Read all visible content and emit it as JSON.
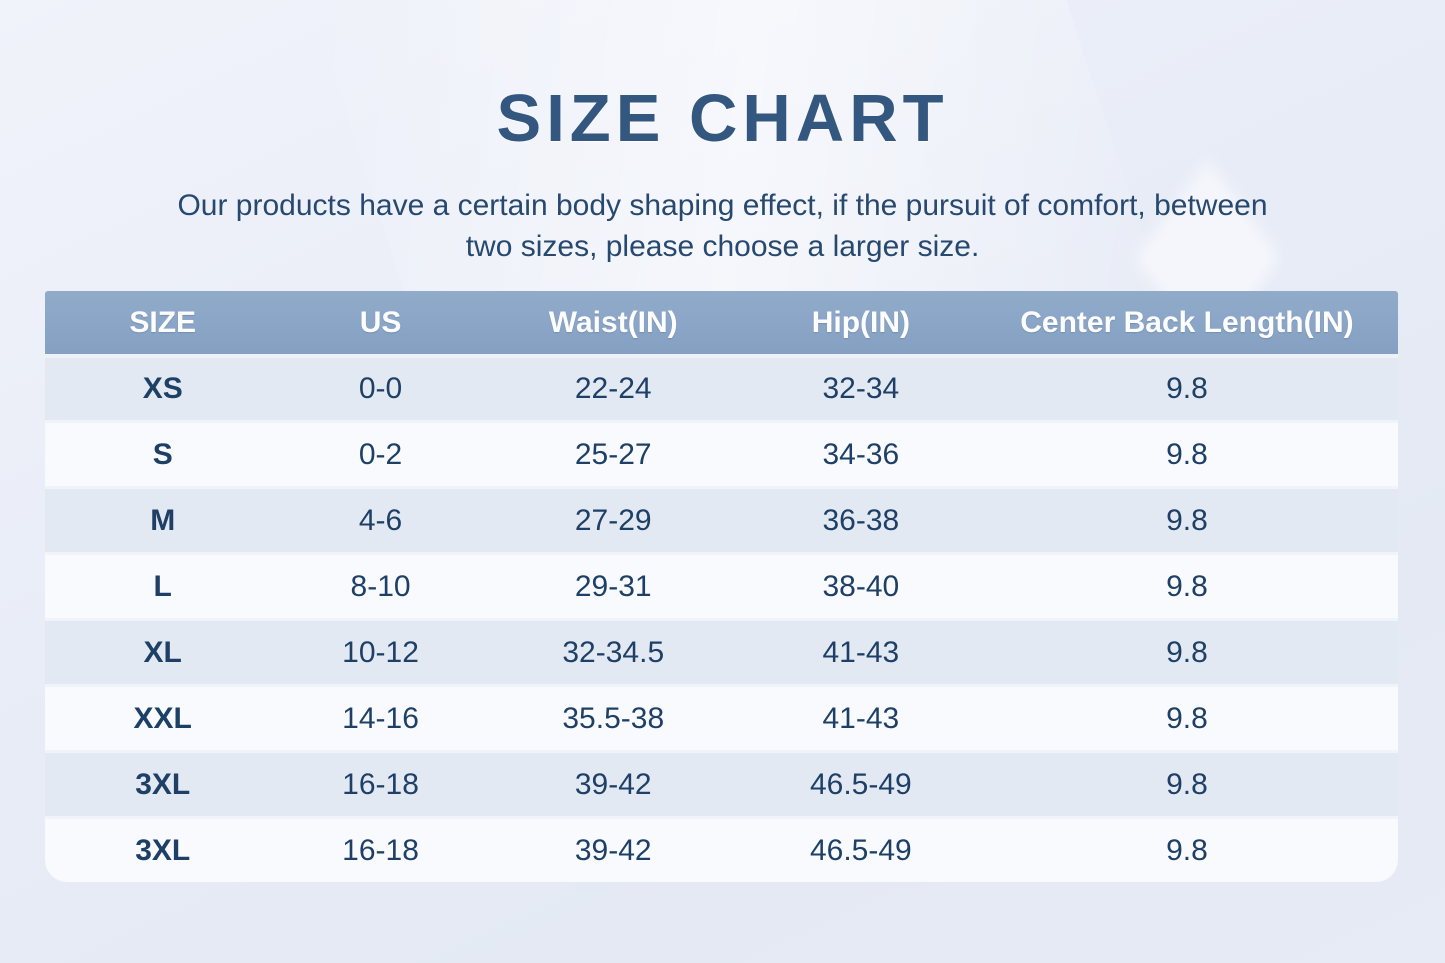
{
  "chart_data": {
    "type": "table",
    "title": "SIZE CHART",
    "subtitle_lines": [
      "Our products have a certain body shaping effect, if the pursuit of comfort, between",
      "two sizes, please choose a larger size."
    ],
    "subtitle_full": "Our products have a certain body shaping effect, if the pursuit of comfort, between two sizes, please choose a larger size.",
    "columns": [
      "SIZE",
      "US",
      "Waist(IN)",
      "Hip(IN)",
      "Center Back Length(IN)"
    ],
    "rows": [
      [
        "XS",
        "0-0",
        "22-24",
        "32-34",
        "9.8"
      ],
      [
        "S",
        "0-2",
        "25-27",
        "34-36",
        "9.8"
      ],
      [
        "M",
        "4-6",
        "27-29",
        "36-38",
        "9.8"
      ],
      [
        "L",
        "8-10",
        "29-31",
        "38-40",
        "9.8"
      ],
      [
        "XL",
        "10-12",
        "32-34.5",
        "41-43",
        "9.8"
      ],
      [
        "XXL",
        "14-16",
        "35.5-38",
        "41-43",
        "9.8"
      ],
      [
        "3XL",
        "16-18",
        "39-42",
        "46.5-49",
        "9.8"
      ],
      [
        "3XL",
        "16-18",
        "39-42",
        "46.5-49",
        "9.8"
      ]
    ],
    "column_widths_pct": [
      17.4,
      14.8,
      19.6,
      17.0,
      31.2
    ]
  },
  "colors": {
    "page_background": "#e8ecf6",
    "header_background": "#8aa5c6",
    "header_text": "#fdfdfe",
    "row_alt_background": "#e3e9f3",
    "row_background": "#f9fafd",
    "title_text": "#33577f",
    "body_text": "#1e4067"
  }
}
